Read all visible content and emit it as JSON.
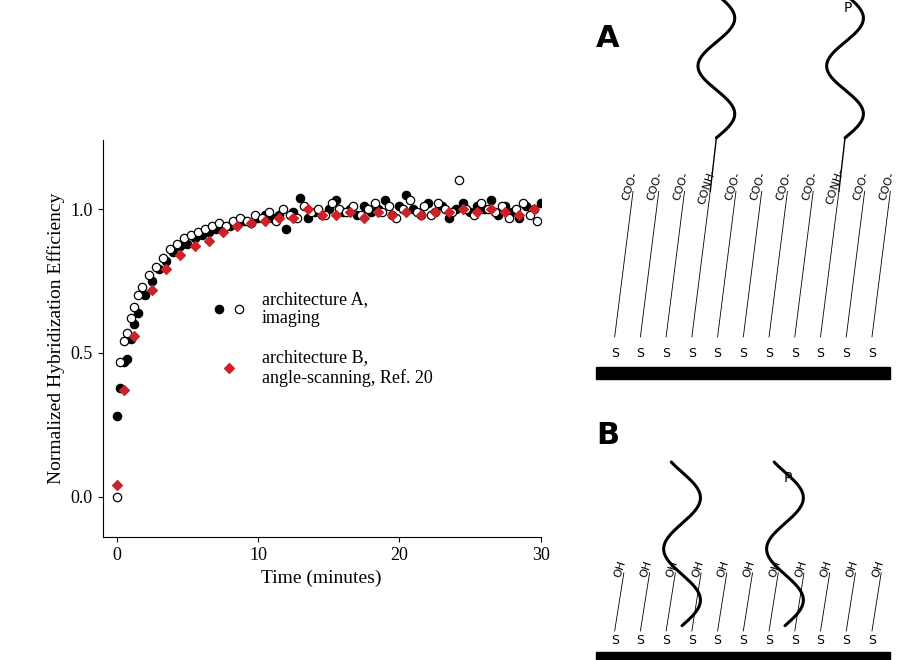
{
  "chart_data": {
    "type": "scatter",
    "x_label": "Time (minutes)",
    "y_label": "Normalized Hybridization Efficiency",
    "xlim": [
      -1,
      30
    ],
    "xticks": [
      0,
      10,
      20,
      30
    ],
    "ylim": [
      -0.14,
      1.24
    ],
    "yticks": [
      {
        "value": 0,
        "label": "0.0"
      },
      {
        "value": 0.5,
        "label": "0.5"
      },
      {
        "value": 1,
        "label": "1.0"
      }
    ],
    "legend": "center",
    "series": [
      {
        "name": "architecture A,\nimaging",
        "color": "#000000",
        "marker": "filled_circle",
        "x": [
          0,
          0.25,
          0.5,
          0.75,
          1,
          1.25,
          1.5,
          2,
          2.5,
          3,
          3.5,
          4,
          4.5,
          5,
          5.5,
          6,
          6.5,
          7,
          7.5,
          8,
          8.5,
          9,
          9.5,
          10,
          10.5,
          11,
          11.5,
          12,
          12.5,
          13,
          13.5,
          14,
          14.5,
          15,
          15.5,
          16,
          16.5,
          17,
          17.5,
          18,
          18.5,
          19,
          19.5,
          20,
          20.5,
          21,
          21.5,
          22,
          22.5,
          23,
          23.5,
          24,
          24.5,
          25,
          25.5,
          26,
          26.5,
          27,
          27.5,
          28,
          28.5,
          29,
          29.5,
          30
        ],
        "values": [
          0.28,
          0.38,
          0.47,
          0.48,
          0.55,
          0.6,
          0.64,
          0.7,
          0.75,
          0.79,
          0.82,
          0.85,
          0.87,
          0.88,
          0.9,
          0.91,
          0.92,
          0.93,
          0.93,
          0.94,
          0.95,
          0.96,
          0.95,
          0.97,
          0.98,
          0.97,
          0.98,
          0.93,
          0.99,
          1.04,
          0.97,
          0.99,
          0.98,
          1.0,
          1.03,
          0.99,
          1.0,
          0.98,
          1.01,
          0.99,
          1.0,
          1.03,
          0.98,
          1.01,
          1.05,
          1.0,
          0.98,
          1.02,
          0.99,
          1.01,
          0.97,
          1.0,
          1.02,
          0.99,
          1.01,
          1.0,
          1.03,
          0.98,
          1.01,
          0.99,
          0.97,
          1.01,
          1.0,
          1.02
        ]
      },
      {
        "color": "#000000",
        "marker": "open_circle",
        "x": [
          0,
          0.25,
          0.5,
          0.75,
          1,
          1.25,
          1.5,
          1.75,
          2.25,
          2.75,
          3.25,
          3.75,
          4.25,
          4.75,
          5.25,
          5.75,
          6.25,
          6.75,
          7.25,
          7.75,
          8.25,
          8.75,
          9.25,
          9.75,
          10.25,
          10.75,
          11.25,
          11.75,
          12.25,
          12.75,
          13.25,
          13.75,
          14.25,
          14.75,
          15.25,
          15.75,
          16.25,
          16.75,
          17.25,
          17.75,
          18.25,
          18.75,
          19.25,
          19.75,
          20.25,
          20.75,
          21.25,
          21.75,
          22.25,
          22.75,
          23.25,
          23.75,
          24.25,
          24.75,
          25.25,
          25.75,
          26.25,
          26.75,
          27.25,
          27.75,
          28.25,
          28.75,
          29.25,
          29.75
        ],
        "values": [
          0.0,
          0.47,
          0.54,
          0.57,
          0.62,
          0.66,
          0.7,
          0.73,
          0.77,
          0.8,
          0.83,
          0.86,
          0.88,
          0.9,
          0.91,
          0.92,
          0.93,
          0.94,
          0.95,
          0.94,
          0.96,
          0.97,
          0.96,
          0.98,
          0.97,
          0.99,
          0.96,
          1.0,
          0.98,
          0.97,
          1.01,
          0.99,
          1.0,
          0.98,
          1.02,
          1.0,
          0.99,
          1.01,
          0.98,
          1.0,
          1.02,
          0.99,
          1.01,
          0.97,
          1.0,
          1.03,
          0.99,
          1.01,
          0.98,
          1.02,
          1.0,
          0.99,
          1.1,
          1.0,
          0.98,
          1.02,
          1.0,
          0.99,
          1.01,
          0.97,
          1.0,
          1.02,
          0.98,
          0.96
        ]
      },
      {
        "name": "architecture B,\nangle-scanning, Ref. 20",
        "color": "#cc2229",
        "marker": "diamond",
        "x": [
          0,
          0.5,
          1.25,
          2.5,
          3.5,
          4.5,
          5.5,
          6.5,
          7.5,
          8.5,
          9.5,
          10.5,
          11.5,
          12.5,
          13.5,
          14.5,
          15.5,
          16.5,
          17.5,
          18.5,
          19.5,
          20.5,
          21.5,
          22.5,
          23.5,
          24.5,
          25.5,
          26.5,
          27.5,
          28.5,
          29.5
        ],
        "values": [
          0.04,
          0.37,
          0.56,
          0.72,
          0.79,
          0.84,
          0.87,
          0.89,
          0.92,
          0.94,
          0.95,
          0.96,
          0.97,
          0.97,
          1.0,
          0.98,
          0.98,
          0.99,
          0.97,
          0.99,
          0.98,
          0.99,
          0.98,
          0.99,
          0.99,
          1.0,
          0.99,
          1.0,
          0.99,
          0.98,
          1.0
        ]
      }
    ]
  },
  "diagrams": [
    {
      "label": "A",
      "probe_label": "P",
      "anchor": "S",
      "head_groups": [
        "COO-",
        "COO-",
        "COO-",
        "CONH-",
        "COO-",
        "COO-",
        "COO-",
        "COO-",
        "CONH-",
        "COO-",
        "COO-"
      ]
    },
    {
      "label": "B",
      "probe_label": "P",
      "anchor": "S",
      "head_groups": [
        "OH",
        "OH",
        "OH",
        "OH",
        "OH",
        "OH",
        "OH",
        "OH",
        "OH",
        "OH",
        "OH"
      ]
    }
  ]
}
